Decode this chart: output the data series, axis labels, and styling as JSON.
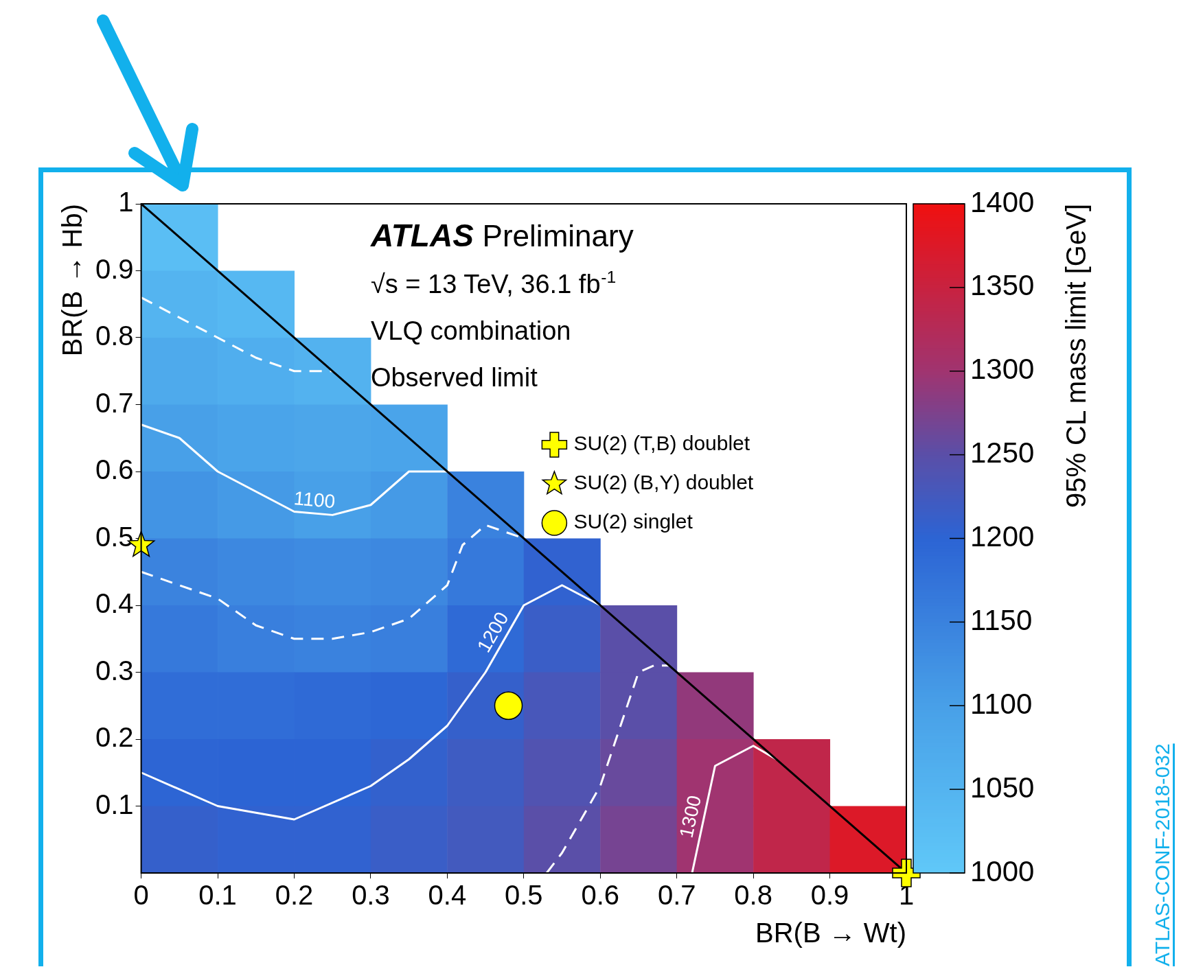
{
  "chart_data": {
    "type": "heatmap",
    "xlabel": "BR(B → Wt)",
    "ylabel": "BR(B → Hb)",
    "clabel": "95% CL mass limit [GeV]",
    "x": [
      0.05,
      0.15,
      0.25,
      0.35,
      0.45,
      0.55,
      0.65,
      0.75,
      0.85,
      0.95
    ],
    "y": [
      0.95,
      0.85,
      0.75,
      0.65,
      0.55,
      0.45,
      0.35,
      0.25,
      0.15,
      0.05
    ],
    "cells": [
      [
        1025,
        null,
        null,
        null,
        null,
        null,
        null,
        null,
        null,
        null
      ],
      [
        1050,
        1040,
        null,
        null,
        null,
        null,
        null,
        null,
        null,
        null
      ],
      [
        1075,
        1065,
        1055,
        null,
        null,
        null,
        null,
        null,
        null,
        null
      ],
      [
        1100,
        1090,
        1085,
        1090,
        null,
        null,
        null,
        null,
        null,
        null
      ],
      [
        1120,
        1110,
        1100,
        1110,
        1150,
        null,
        null,
        null,
        null,
        null
      ],
      [
        1148,
        1140,
        1135,
        1140,
        1165,
        1205,
        null,
        null,
        null,
        null
      ],
      [
        1165,
        1155,
        1150,
        1155,
        1190,
        1215,
        1250,
        null,
        null,
        null
      ],
      [
        1185,
        1185,
        1190,
        1195,
        1210,
        1230,
        1250,
        1290,
        null,
        null
      ],
      [
        1198,
        1200,
        1200,
        1208,
        1220,
        1240,
        1260,
        1300,
        1340,
        null
      ],
      [
        1210,
        1205,
        1205,
        1215,
        1225,
        1250,
        1270,
        1300,
        1340,
        1375
      ]
    ],
    "clim": [
      1000,
      1400
    ],
    "cticks": [
      1000,
      1050,
      1100,
      1150,
      1200,
      1250,
      1300,
      1350,
      1400
    ],
    "xlim": [
      0,
      1
    ],
    "xticks": [
      0,
      0.1,
      0.2,
      0.3,
      0.4,
      0.5,
      0.6,
      0.7,
      0.8,
      0.9,
      1
    ],
    "ylim": [
      0,
      1
    ],
    "yticks": [
      0.1,
      0.2,
      0.3,
      0.4,
      0.5,
      0.6,
      0.7,
      0.8,
      0.9,
      1
    ],
    "legend": "top right",
    "series": [
      {
        "type": "line",
        "color": "#000000",
        "line_style": "solid",
        "x": [
          0,
          1
        ],
        "values": [
          1,
          0
        ]
      },
      {
        "type": "line",
        "color": "#ffffff",
        "line_style": "dashed",
        "x": [
          0,
          0.05,
          0.1,
          0.15,
          0.2,
          0.25
        ],
        "values": [
          0.86,
          0.83,
          0.8,
          0.77,
          0.75,
          0.75
        ]
      },
      {
        "type": "line",
        "color": "#ffffff",
        "line_style": "solid",
        "x": [
          0,
          0.05,
          0.1,
          0.15,
          0.2,
          0.25,
          0.3,
          0.35,
          0.4
        ],
        "values": [
          0.67,
          0.65,
          0.6,
          0.57,
          0.54,
          0.535,
          0.55,
          0.6,
          0.6
        ]
      },
      {
        "type": "line",
        "color": "#ffffff",
        "line_style": "dashed",
        "x": [
          0,
          0.1,
          0.15,
          0.2,
          0.25,
          0.3,
          0.35,
          0.4,
          0.42,
          0.45,
          0.5
        ],
        "values": [
          0.45,
          0.41,
          0.37,
          0.35,
          0.35,
          0.36,
          0.38,
          0.43,
          0.49,
          0.52,
          0.5
        ]
      },
      {
        "type": "line",
        "color": "#ffffff",
        "line_style": "solid",
        "x": [
          0,
          0.1,
          0.2,
          0.3,
          0.35,
          0.4,
          0.45,
          0.5,
          0.55,
          0.6
        ],
        "values": [
          0.15,
          0.1,
          0.08,
          0.13,
          0.17,
          0.22,
          0.3,
          0.4,
          0.43,
          0.4
        ]
      },
      {
        "type": "line",
        "color": "#ffffff",
        "line_style": "dashed",
        "x": [
          0.53,
          0.55,
          0.6,
          0.65,
          0.67,
          0.69
        ],
        "values": [
          0,
          0.03,
          0.13,
          0.3,
          0.31,
          0.31
        ]
      },
      {
        "type": "line",
        "color": "#ffffff",
        "line_style": "solid",
        "x": [
          0.72,
          0.75,
          0.8,
          0.83
        ],
        "values": [
          0,
          0.16,
          0.19,
          0.17
        ]
      },
      {
        "type": "scatter",
        "name": "SU(2) (T,B) doublet",
        "marker": "cross",
        "color": "#ffff00",
        "x": [
          1
        ],
        "values": [
          0
        ]
      },
      {
        "type": "scatter",
        "name": "SU(2) (B,Y) doublet",
        "marker": "star",
        "color": "#ffff00",
        "x": [
          0
        ],
        "values": [
          0.49
        ]
      },
      {
        "type": "scatter",
        "name": "SU(2) singlet",
        "marker": "circle",
        "color": "#ffff00",
        "x": [
          0.48
        ],
        "values": [
          0.25
        ]
      }
    ],
    "annotations": [
      "ATLAS Preliminary",
      "√s = 13 TeV, 36.1 fb$^{-1}$",
      "VLQ combination",
      "Observed limit",
      {
        "text": "1100",
        "x": 0.225,
        "y": 0.5375
      },
      {
        "text": "1200",
        "x": 0.475,
        "y": 0.35
      },
      {
        "text": "1300",
        "x": 0.735,
        "y": 0.08
      },
      "ATLAS-CONF-2018-032"
    ]
  }
}
